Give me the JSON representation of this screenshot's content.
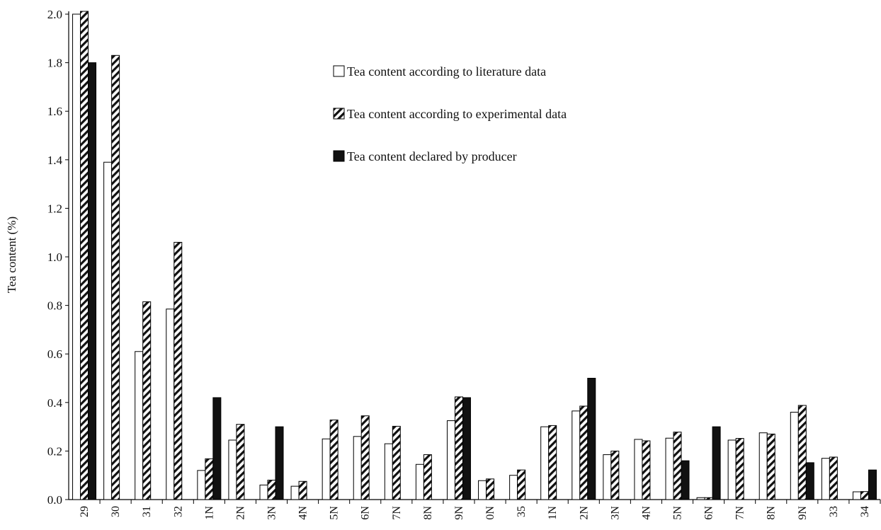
{
  "chart_data": {
    "type": "bar",
    "title": "",
    "xlabel": "",
    "ylabel": "Tea content (%)",
    "ylim": [
      0,
      2.0
    ],
    "yticks": [
      "0.0",
      "0.2",
      "0.4",
      "0.6",
      "0.8",
      "1.0",
      "1.2",
      "1.4",
      "1.6",
      "1.8",
      "2.0"
    ],
    "grid": false,
    "legend_position": "top-right",
    "categories": [
      "29",
      "30",
      "31",
      "32",
      "1N",
      "2N",
      "3N",
      "4N",
      "5N",
      "6N",
      "7N",
      "8N",
      "9N",
      "0N",
      "35",
      "1N",
      "2N",
      "3N",
      "4N",
      "5N",
      "6N",
      "7N",
      "8N",
      "9N",
      "33",
      "34"
    ],
    "series": [
      {
        "name": "Tea content according to literature data",
        "pattern": "white",
        "values": [
          2.0,
          1.39,
          0.61,
          0.785,
          0.12,
          0.245,
          0.06,
          0.055,
          0.25,
          0.26,
          0.23,
          0.145,
          0.325,
          0.078,
          0.1,
          0.3,
          0.365,
          0.185,
          0.248,
          0.253,
          0.008,
          0.245,
          0.275,
          0.36,
          0.17,
          0.032
        ]
      },
      {
        "name": "Tea content according to experimental data",
        "pattern": "hatched",
        "values": [
          2.02,
          1.83,
          0.815,
          1.06,
          0.168,
          0.31,
          0.08,
          0.075,
          0.328,
          0.345,
          0.302,
          0.185,
          0.423,
          0.085,
          0.122,
          0.305,
          0.385,
          0.2,
          0.242,
          0.278,
          0.008,
          0.252,
          0.27,
          0.388,
          0.175,
          0.033
        ]
      },
      {
        "name": "Tea content declared by producer",
        "pattern": "black",
        "values": [
          1.8,
          0,
          0,
          0,
          0.42,
          0,
          0.3,
          0,
          0,
          0,
          0,
          0,
          0.42,
          0,
          0,
          0,
          0.5,
          0,
          0,
          0.16,
          0.3,
          0,
          0,
          0.152,
          0,
          0.122
        ]
      }
    ],
    "colors": {
      "bar_outline": "#000000",
      "white_fill": "#ffffff",
      "black_fill": "#111111",
      "hatch": "#111111"
    }
  }
}
